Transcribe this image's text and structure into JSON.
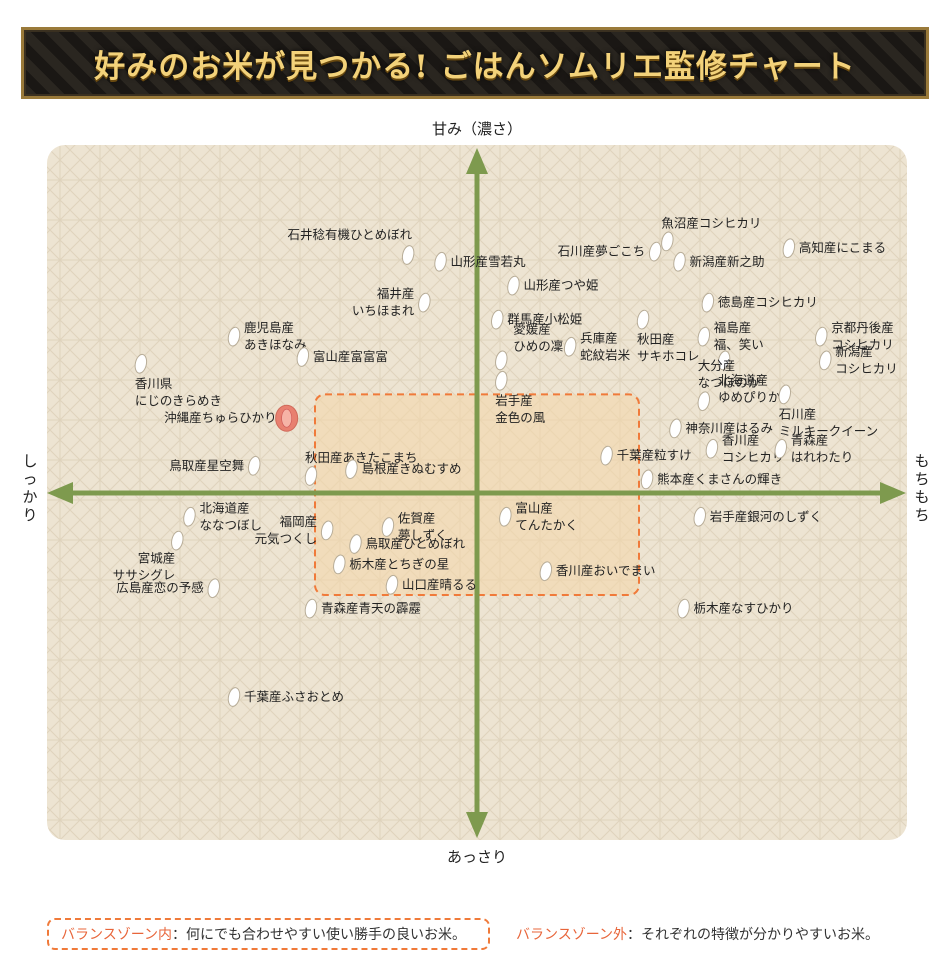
{
  "title": "好みのお米が見つかる! ごはんソムリエ監修チャート",
  "footer": {
    "inside_label": "バランスゾーン内",
    "inside_text": "：何にでも合わせやすい使い勝手の良いお米。",
    "outside_label": "バランスゾーン外",
    "outside_text": "：それぞれの特徴が分かりやすいお米。"
  },
  "chart_data": {
    "type": "scatter",
    "axes": {
      "top": "甘み（濃さ）",
      "bottom": "あっさり",
      "left": "しっかり",
      "right": "もちもち"
    },
    "xlim": [
      -10,
      10
    ],
    "ylim": [
      -10,
      10
    ],
    "colors": {
      "panel": "#ede4d2",
      "axis": "#7e9a4e",
      "zone_border": "#f07a3a",
      "zone_fill": "#f4d7ac",
      "grain": "#ffffff",
      "highlight": "#e88070"
    },
    "balance_zone": {
      "x": [
        -4.0,
        4.0
      ],
      "y": [
        -3.0,
        2.9
      ]
    },
    "points": [
      {
        "name": "魚沼産コシヒカリ",
        "x": 4.7,
        "y": 7.4,
        "label_side": "above"
      },
      {
        "name": "石川産夢ごこち",
        "x": 4.4,
        "y": 7.1,
        "label_side": "left"
      },
      {
        "name": "新潟産新之助",
        "x": 5.0,
        "y": 6.8,
        "label_side": "right"
      },
      {
        "name": "高知産にこまる",
        "x": 7.7,
        "y": 7.2,
        "label_side": "right"
      },
      {
        "name": "石井稔有機ひとめぼれ",
        "x": -1.7,
        "y": 7.0,
        "label_side": "above-left"
      },
      {
        "name": "山形産雪若丸",
        "x": -0.9,
        "y": 6.8,
        "label_side": "right"
      },
      {
        "name": "山形産つや姫",
        "x": 0.9,
        "y": 6.1,
        "label_side": "right"
      },
      {
        "name": "徳島産コシヒカリ",
        "x": 5.7,
        "y": 5.6,
        "label_side": "right"
      },
      {
        "name": "福井産\nいちほまれ",
        "x": -1.3,
        "y": 5.6,
        "label_side": "left"
      },
      {
        "name": "群馬産小松姫",
        "x": 0.5,
        "y": 5.1,
        "label_side": "right"
      },
      {
        "name": "秋田産\nサキホコレ",
        "x": 4.1,
        "y": 5.1,
        "label_side": "below"
      },
      {
        "name": "福島産\n福、笑い",
        "x": 5.6,
        "y": 4.6,
        "label_side": "right"
      },
      {
        "name": "京都丹後産\nコシヒカリ",
        "x": 8.5,
        "y": 4.6,
        "label_side": "right"
      },
      {
        "name": "鹿児島産\nあきほなみ",
        "x": -6.0,
        "y": 4.6,
        "label_side": "right"
      },
      {
        "name": "兵庫産\n蛇紋岩米",
        "x": 2.3,
        "y": 4.3,
        "label_side": "right"
      },
      {
        "name": "富山産富富富",
        "x": -4.3,
        "y": 4.0,
        "label_side": "right"
      },
      {
        "name": "愛媛産\nひめの凜",
        "x": 0.6,
        "y": 3.9,
        "label_side": "above-right"
      },
      {
        "name": "北海道産\nゆめぴりか",
        "x": 6.1,
        "y": 3.9,
        "label_side": "below"
      },
      {
        "name": "新潟産\nコシヒカリ",
        "x": 8.6,
        "y": 3.9,
        "label_side": "right"
      },
      {
        "name": "香川県\nにじのきらめき",
        "x": -8.3,
        "y": 3.8,
        "label_side": "below"
      },
      {
        "name": "岩手産\n金色の風",
        "x": 0.6,
        "y": 3.3,
        "label_side": "below"
      },
      {
        "name": "大分産\nなつほのか",
        "x": 5.6,
        "y": 2.7,
        "label_side": "above"
      },
      {
        "name": "石川産\nミルキークイーン",
        "x": 7.6,
        "y": 2.9,
        "label_side": "below"
      },
      {
        "name": "沖縄産ちゅらひかり",
        "x": -4.7,
        "y": 2.2,
        "label_side": "left",
        "highlight": true
      },
      {
        "name": "神奈川産はるみ",
        "x": 4.9,
        "y": 1.9,
        "label_side": "right"
      },
      {
        "name": "秋田産あきたこまち",
        "x": -4.1,
        "y": 0.5,
        "label_side": "above"
      },
      {
        "name": "香川産\nコシヒカリ",
        "x": 5.8,
        "y": 1.3,
        "label_side": "right"
      },
      {
        "name": "青森産\nはれわたり",
        "x": 7.5,
        "y": 1.3,
        "label_side": "right"
      },
      {
        "name": "千葉産粒すけ",
        "x": 3.2,
        "y": 1.1,
        "label_side": "right"
      },
      {
        "name": "鳥取産星空舞",
        "x": -5.5,
        "y": 0.8,
        "label_side": "left"
      },
      {
        "name": "島根産きぬむすめ",
        "x": -3.1,
        "y": 0.7,
        "label_side": "right"
      },
      {
        "name": "熊本産くまさんの輝き",
        "x": 4.2,
        "y": 0.4,
        "label_side": "right"
      },
      {
        "name": "北海道産\nななつぼし",
        "x": -7.1,
        "y": -0.7,
        "label_side": "right"
      },
      {
        "name": "岩手産銀河のしずく",
        "x": 5.5,
        "y": -0.7,
        "label_side": "right"
      },
      {
        "name": "佐賀産\n夢しずく",
        "x": -2.2,
        "y": -1.0,
        "label_side": "right"
      },
      {
        "name": "富山産\nてんたかく",
        "x": 0.7,
        "y": -0.7,
        "label_side": "right"
      },
      {
        "name": "福岡産\n元気つくし",
        "x": -3.7,
        "y": -1.1,
        "label_side": "left"
      },
      {
        "name": "宮城産\nササシグレ",
        "x": -7.4,
        "y": -1.4,
        "label_side": "below-left"
      },
      {
        "name": "鳥取産ひとめぼれ",
        "x": -3.0,
        "y": -1.5,
        "label_side": "right"
      },
      {
        "name": "栃木産とちぎの星",
        "x": -3.4,
        "y": -2.1,
        "label_side": "right"
      },
      {
        "name": "香川産おいでまい",
        "x": 1.7,
        "y": -2.3,
        "label_side": "right"
      },
      {
        "name": "山口産晴るる",
        "x": -2.1,
        "y": -2.7,
        "label_side": "right"
      },
      {
        "name": "広島産恋の予感",
        "x": -6.5,
        "y": -2.8,
        "label_side": "left"
      },
      {
        "name": "青森産青天の霹靂",
        "x": -4.1,
        "y": -3.4,
        "label_side": "right"
      },
      {
        "name": "栃木産なすひかり",
        "x": 5.1,
        "y": -3.4,
        "label_side": "right"
      },
      {
        "name": "千葉産ふさおとめ",
        "x": -6.0,
        "y": -6.0,
        "label_side": "right"
      }
    ]
  }
}
